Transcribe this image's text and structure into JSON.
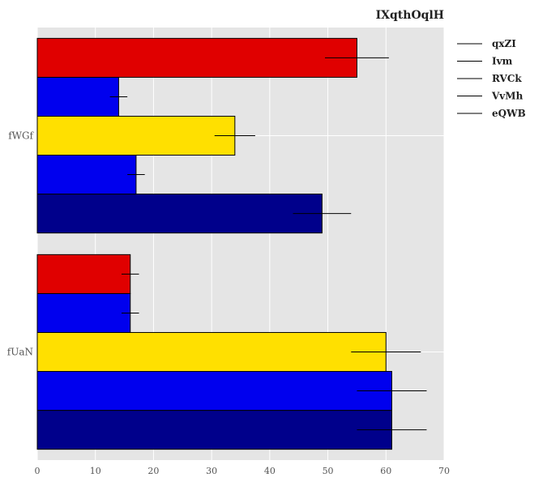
{
  "chart_data": {
    "type": "bar",
    "orientation": "horizontal",
    "title": "IXqthOqlH",
    "xlabel": "",
    "ylabel": "",
    "xlim": [
      0,
      70
    ],
    "xticks": [
      0,
      10,
      20,
      30,
      40,
      50,
      60,
      70
    ],
    "grid": true,
    "legend_position": "top-right, outside plot",
    "categories": [
      "fUaN",
      "fWGf"
    ],
    "series": [
      {
        "name": "eQWB",
        "color": "#00008b",
        "values": [
          61,
          49
        ],
        "errors": [
          6,
          5
        ]
      },
      {
        "name": "VvMh",
        "color": "#0000ee",
        "values": [
          61,
          17
        ],
        "errors": [
          6,
          1.5
        ]
      },
      {
        "name": "RVCk",
        "color": "#ffe000",
        "values": [
          60,
          34
        ],
        "errors": [
          6,
          3.5
        ]
      },
      {
        "name": "Ivm",
        "color": "#0000ee",
        "values": [
          16,
          14
        ],
        "errors": [
          1.5,
          1.5
        ]
      },
      {
        "name": "qxZI",
        "color": "#e00000",
        "values": [
          16,
          55
        ],
        "errors": [
          1.5,
          5.5
        ]
      }
    ],
    "colors": {
      "plot_background": "#e5e5e5",
      "grid": "#ffffff",
      "bar_edge": "#000000",
      "error_bar": "#000000"
    }
  }
}
